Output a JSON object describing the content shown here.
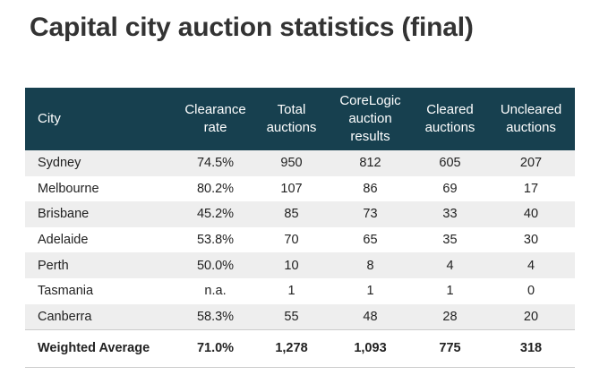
{
  "title": "Capital city auction statistics (final)",
  "table": {
    "headers": {
      "city": "City",
      "clearance": [
        "Clearance",
        "rate"
      ],
      "total": [
        "Total",
        "auctions"
      ],
      "corelogic": [
        "CoreLogic",
        "auction",
        "results"
      ],
      "cleared": [
        "Cleared",
        "auctions"
      ],
      "uncleared": [
        "Uncleared",
        "auctions"
      ]
    },
    "rows": [
      {
        "city": "Sydney",
        "clearance": "74.5%",
        "total": "950",
        "corelogic": "812",
        "cleared": "605",
        "uncleared": "207"
      },
      {
        "city": "Melbourne",
        "clearance": "80.2%",
        "total": "107",
        "corelogic": "86",
        "cleared": "69",
        "uncleared": "17"
      },
      {
        "city": "Brisbane",
        "clearance": "45.2%",
        "total": "85",
        "corelogic": "73",
        "cleared": "33",
        "uncleared": "40"
      },
      {
        "city": "Adelaide",
        "clearance": "53.8%",
        "total": "70",
        "corelogic": "65",
        "cleared": "35",
        "uncleared": "30"
      },
      {
        "city": "Perth",
        "clearance": "50.0%",
        "total": "10",
        "corelogic": "8",
        "cleared": "4",
        "uncleared": "4"
      },
      {
        "city": "Tasmania",
        "clearance": "n.a.",
        "total": "1",
        "corelogic": "1",
        "cleared": "1",
        "uncleared": "0"
      },
      {
        "city": "Canberra",
        "clearance": "58.3%",
        "total": "55",
        "corelogic": "48",
        "cleared": "28",
        "uncleared": "20"
      }
    ],
    "footer": {
      "city": "Weighted Average",
      "clearance": "71.0%",
      "total": "1,278",
      "corelogic": "1,093",
      "cleared": "775",
      "uncleared": "318"
    }
  },
  "colors": {
    "header_bg": "#17404f",
    "header_text": "#ffffff",
    "row_shade": "#eeeeee",
    "title_text": "#333333"
  }
}
